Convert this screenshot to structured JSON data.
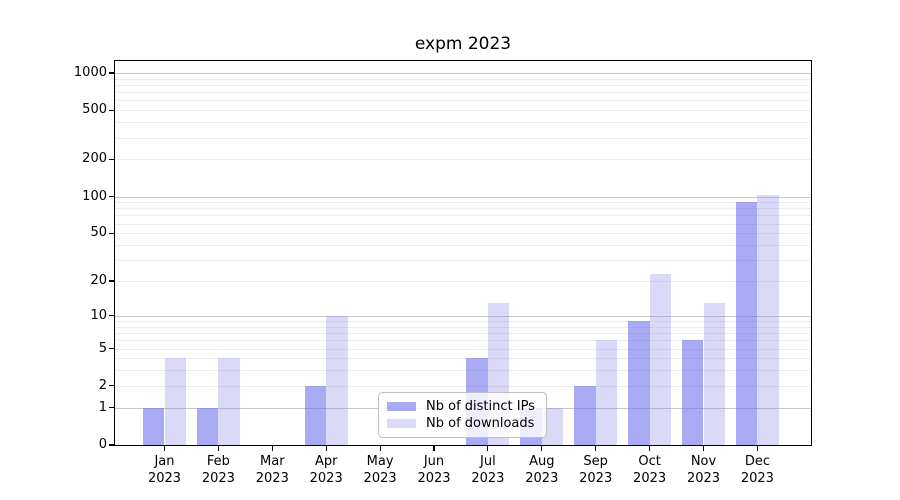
{
  "title": "expm 2023",
  "chart_data": {
    "type": "bar",
    "title": "expm 2023",
    "categories": [
      "Jan 2023",
      "Feb 2023",
      "Mar 2023",
      "Apr 2023",
      "May 2023",
      "Jun 2023",
      "Jul 2023",
      "Aug 2023",
      "Sep 2023",
      "Oct 2023",
      "Nov 2023",
      "Dec 2023"
    ],
    "series": [
      {
        "name": "Nb of distinct IPs",
        "values": [
          1,
          1,
          0,
          2,
          0,
          0,
          4,
          1,
          2,
          9,
          6,
          90
        ]
      },
      {
        "name": "Nb of downloads",
        "values": [
          4,
          4,
          0,
          10,
          0,
          0,
          13,
          1,
          6,
          23,
          13,
          103
        ]
      }
    ],
    "xlabel": "",
    "ylabel": "",
    "yscale": "log10(1+v)",
    "yticks": [
      0,
      1,
      2,
      5,
      10,
      20,
      50,
      100,
      200,
      500,
      1000
    ],
    "ylim": [
      0,
      1250
    ],
    "grid": "horizontal major and minor",
    "legend_position": "inside lower center"
  },
  "colors": {
    "bar_ips": "rgba(112,113,237,0.6)",
    "bar_downloads": "rgba(132,133,232,0.3)",
    "grid_major": "#c8c8c8",
    "grid_minor": "#ececec",
    "axis": "#000000"
  }
}
